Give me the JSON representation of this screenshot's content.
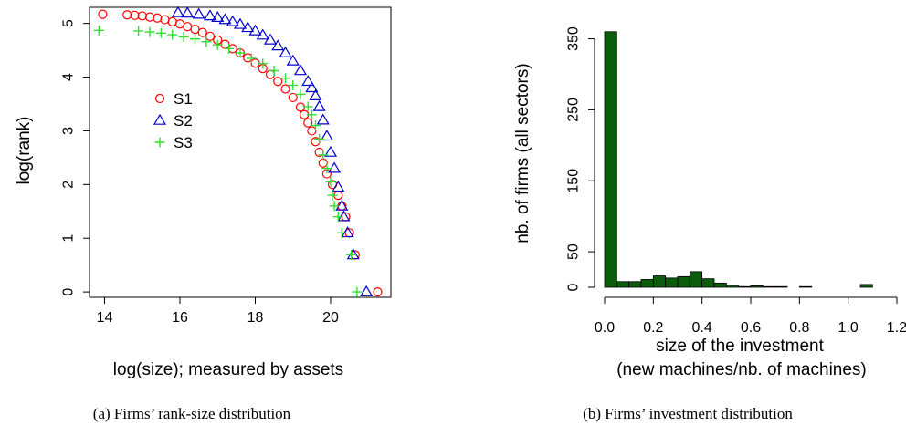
{
  "chart_data": [
    {
      "type": "scatter",
      "xlabel": "log(size); measured by assets",
      "ylabel": "log(rank)",
      "caption": "(a) Firms’ rank-size distribution",
      "xlim": [
        13.6,
        21.6
      ],
      "ylim": [
        -0.1,
        5.3
      ],
      "xticks": [
        "14",
        "16",
        "18",
        "20"
      ],
      "yticks": [
        "0",
        "1",
        "2",
        "3",
        "4",
        "5"
      ],
      "legend_position": "left-center",
      "series": [
        {
          "name": "S1",
          "marker": "circle",
          "color": "#ff0000",
          "points": [
            [
              13.95,
              5.17
            ],
            [
              14.6,
              5.16
            ],
            [
              14.8,
              5.15
            ],
            [
              15.0,
              5.14
            ],
            [
              15.2,
              5.12
            ],
            [
              15.4,
              5.1
            ],
            [
              15.6,
              5.07
            ],
            [
              15.8,
              5.03
            ],
            [
              16.0,
              4.99
            ],
            [
              16.2,
              4.94
            ],
            [
              16.4,
              4.89
            ],
            [
              16.6,
              4.83
            ],
            [
              16.8,
              4.76
            ],
            [
              17.0,
              4.69
            ],
            [
              17.2,
              4.61
            ],
            [
              17.4,
              4.53
            ],
            [
              17.6,
              4.45
            ],
            [
              17.8,
              4.36
            ],
            [
              18.0,
              4.26
            ],
            [
              18.2,
              4.16
            ],
            [
              18.4,
              4.05
            ],
            [
              18.6,
              3.92
            ],
            [
              18.8,
              3.78
            ],
            [
              19.0,
              3.62
            ],
            [
              19.2,
              3.44
            ],
            [
              19.3,
              3.3
            ],
            [
              19.4,
              3.15
            ],
            [
              19.5,
              3.0
            ],
            [
              19.6,
              2.8
            ],
            [
              19.7,
              2.6
            ],
            [
              19.8,
              2.4
            ],
            [
              19.9,
              2.2
            ],
            [
              20.05,
              2.0
            ],
            [
              20.2,
              1.8
            ],
            [
              20.3,
              1.6
            ],
            [
              20.4,
              1.4
            ],
            [
              20.5,
              1.1
            ],
            [
              20.65,
              0.69
            ],
            [
              21.25,
              0.0
            ]
          ]
        },
        {
          "name": "S2",
          "marker": "triangle",
          "color": "#0000cc",
          "points": [
            [
              15.95,
              5.2
            ],
            [
              16.2,
              5.19
            ],
            [
              16.5,
              5.17
            ],
            [
              16.8,
              5.14
            ],
            [
              17.0,
              5.11
            ],
            [
              17.2,
              5.07
            ],
            [
              17.4,
              5.03
            ],
            [
              17.6,
              4.98
            ],
            [
              17.8,
              4.92
            ],
            [
              18.0,
              4.86
            ],
            [
              18.2,
              4.78
            ],
            [
              18.4,
              4.69
            ],
            [
              18.6,
              4.58
            ],
            [
              18.8,
              4.45
            ],
            [
              19.0,
              4.3
            ],
            [
              19.2,
              4.12
            ],
            [
              19.4,
              3.92
            ],
            [
              19.5,
              3.8
            ],
            [
              19.6,
              3.65
            ],
            [
              19.7,
              3.45
            ],
            [
              19.8,
              3.2
            ],
            [
              19.9,
              2.9
            ],
            [
              20.0,
              2.6
            ],
            [
              20.1,
              2.3
            ],
            [
              20.2,
              1.95
            ],
            [
              20.3,
              1.6
            ],
            [
              20.35,
              1.4
            ],
            [
              20.45,
              1.1
            ],
            [
              20.6,
              0.69
            ],
            [
              20.95,
              0.0
            ]
          ]
        },
        {
          "name": "S3",
          "marker": "plus",
          "color": "#33dd33",
          "points": [
            [
              13.85,
              4.87
            ],
            [
              14.9,
              4.86
            ],
            [
              15.2,
              4.84
            ],
            [
              15.5,
              4.82
            ],
            [
              15.8,
              4.79
            ],
            [
              16.1,
              4.75
            ],
            [
              16.4,
              4.71
            ],
            [
              16.7,
              4.66
            ],
            [
              17.0,
              4.6
            ],
            [
              17.3,
              4.53
            ],
            [
              17.6,
              4.45
            ],
            [
              17.9,
              4.35
            ],
            [
              18.2,
              4.25
            ],
            [
              18.5,
              4.12
            ],
            [
              18.8,
              3.98
            ],
            [
              19.0,
              3.85
            ],
            [
              19.2,
              3.68
            ],
            [
              19.4,
              3.45
            ],
            [
              19.5,
              3.3
            ],
            [
              19.6,
              3.1
            ],
            [
              19.7,
              2.85
            ],
            [
              19.8,
              2.55
            ],
            [
              19.9,
              2.3
            ],
            [
              20.0,
              2.05
            ],
            [
              20.05,
              1.8
            ],
            [
              20.1,
              1.6
            ],
            [
              20.2,
              1.4
            ],
            [
              20.3,
              1.1
            ],
            [
              20.55,
              0.69
            ],
            [
              20.7,
              0.0
            ]
          ]
        }
      ]
    },
    {
      "type": "bar",
      "xlabel_line1": "size of the investment",
      "xlabel_line2": "(new machines/nb. of machines)",
      "ylabel": "nb. of firms (all sectors)",
      "caption": "(b) Firms’ investment distribution",
      "xlim": [
        0,
        1.2
      ],
      "ylim": [
        0,
        370
      ],
      "xticks": [
        "0.0",
        "0.2",
        "0.4",
        "0.6",
        "0.8",
        "1.0",
        "1.2"
      ],
      "yticks": [
        "0",
        "50",
        "150",
        "250",
        "350"
      ],
      "bar_color": "#0a5c0a",
      "bin_width": 0.05,
      "bins": [
        [
          0.0,
          360
        ],
        [
          0.05,
          8
        ],
        [
          0.1,
          8
        ],
        [
          0.15,
          11
        ],
        [
          0.2,
          16
        ],
        [
          0.25,
          13
        ],
        [
          0.3,
          15
        ],
        [
          0.35,
          22
        ],
        [
          0.4,
          12
        ],
        [
          0.45,
          6
        ],
        [
          0.5,
          3
        ],
        [
          0.55,
          1
        ],
        [
          0.6,
          2
        ],
        [
          0.65,
          1
        ],
        [
          0.7,
          1
        ],
        [
          0.75,
          0
        ],
        [
          0.8,
          1
        ],
        [
          0.85,
          0
        ],
        [
          0.9,
          0
        ],
        [
          0.95,
          0
        ],
        [
          1.0,
          0
        ],
        [
          1.05,
          4
        ]
      ]
    }
  ]
}
